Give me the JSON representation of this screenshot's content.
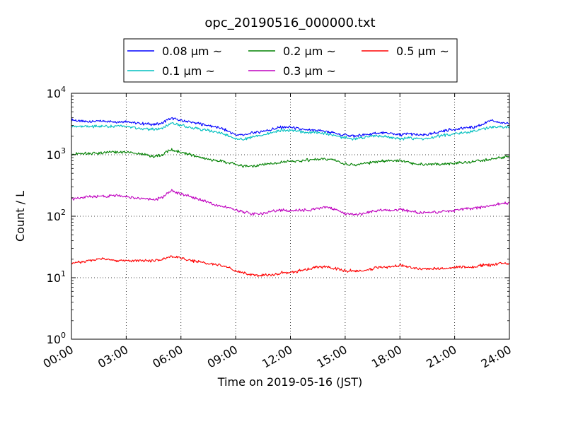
{
  "chart_data": {
    "type": "line",
    "title": "opc_20190516_000000.txt",
    "xlabel": "Time on 2019-05-16 (JST)",
    "ylabel": "Count / L",
    "x_unit": "time of day (JST)",
    "xlim": [
      "00:00",
      "24:00"
    ],
    "x_ticks": [
      "00:00",
      "03:00",
      "06:00",
      "09:00",
      "12:00",
      "15:00",
      "18:00",
      "21:00",
      "24:00"
    ],
    "yscale": "log",
    "ylim": [
      1,
      10000
    ],
    "y_ticks": [
      {
        "base": "10",
        "exp": "0"
      },
      {
        "base": "10",
        "exp": "1"
      },
      {
        "base": "10",
        "exp": "2"
      },
      {
        "base": "10",
        "exp": "3"
      },
      {
        "base": "10",
        "exp": "4"
      }
    ],
    "grid": true,
    "legend_position": "top-center",
    "x": [
      "00:00",
      "00:30",
      "01:00",
      "01:30",
      "02:00",
      "02:30",
      "03:00",
      "03:30",
      "04:00",
      "04:30",
      "05:00",
      "05:15",
      "05:30",
      "06:00",
      "06:30",
      "07:00",
      "07:30",
      "08:00",
      "08:30",
      "09:00",
      "09:30",
      "10:00",
      "10:30",
      "11:00",
      "11:30",
      "12:00",
      "12:30",
      "13:00",
      "13:30",
      "14:00",
      "14:30",
      "15:00",
      "15:30",
      "16:00",
      "16:30",
      "17:00",
      "17:30",
      "18:00",
      "18:30",
      "19:00",
      "19:30",
      "20:00",
      "20:30",
      "21:00",
      "21:30",
      "22:00",
      "22:30",
      "23:00",
      "23:30",
      "24:00"
    ],
    "series": [
      {
        "name": "0.08 µm ~",
        "color": "#0000ff",
        "values": [
          3700,
          3500,
          3500,
          3500,
          3500,
          3450,
          3500,
          3300,
          3200,
          3100,
          3300,
          3700,
          3900,
          3600,
          3400,
          3200,
          3000,
          2800,
          2500,
          2100,
          2100,
          2300,
          2400,
          2600,
          2800,
          2800,
          2600,
          2500,
          2500,
          2400,
          2200,
          2100,
          2000,
          2100,
          2200,
          2300,
          2200,
          2100,
          2200,
          2100,
          2100,
          2300,
          2500,
          2600,
          2700,
          2800,
          3100,
          3600,
          3300,
          3300
        ]
      },
      {
        "name": "0.1 µm ~",
        "color": "#00bfbf",
        "values": [
          2900,
          2900,
          2900,
          2900,
          2900,
          2900,
          2900,
          2700,
          2600,
          2600,
          2700,
          3000,
          3300,
          3000,
          2800,
          2600,
          2500,
          2300,
          2100,
          1800,
          1800,
          2000,
          2100,
          2300,
          2500,
          2500,
          2400,
          2300,
          2300,
          2200,
          2000,
          1900,
          1800,
          1900,
          2000,
          2000,
          1900,
          1800,
          1900,
          1800,
          1800,
          2000,
          2100,
          2200,
          2300,
          2400,
          2600,
          2800,
          2800,
          2800
        ]
      },
      {
        "name": "0.2 µm ~",
        "color": "#008000",
        "values": [
          1000,
          1050,
          1050,
          1050,
          1100,
          1100,
          1100,
          1050,
          1000,
          950,
          1000,
          1150,
          1200,
          1100,
          1000,
          900,
          850,
          800,
          750,
          700,
          650,
          650,
          700,
          720,
          750,
          780,
          800,
          820,
          850,
          850,
          800,
          700,
          680,
          720,
          750,
          780,
          800,
          800,
          750,
          700,
          700,
          700,
          700,
          720,
          750,
          780,
          800,
          850,
          900,
          950
        ]
      },
      {
        "name": "0.3 µm ~",
        "color": "#bf00bf",
        "values": [
          190,
          200,
          210,
          210,
          215,
          215,
          210,
          200,
          195,
          185,
          200,
          240,
          260,
          230,
          210,
          190,
          170,
          150,
          140,
          125,
          115,
          110,
          110,
          120,
          125,
          125,
          125,
          125,
          135,
          140,
          130,
          110,
          105,
          110,
          120,
          125,
          125,
          130,
          120,
          115,
          115,
          115,
          120,
          125,
          130,
          135,
          140,
          150,
          160,
          165
        ]
      },
      {
        "name": "0.5 µm ~",
        "color": "#ff0000",
        "values": [
          17,
          18,
          19,
          20,
          20,
          19,
          19,
          19,
          19,
          19,
          20,
          21,
          22,
          21,
          19,
          18,
          17,
          16,
          15,
          13,
          12,
          11,
          11,
          11,
          12,
          12,
          13,
          14,
          15,
          15,
          14,
          13,
          13,
          13,
          14,
          15,
          15,
          16,
          15,
          14,
          14,
          14,
          14,
          15,
          15,
          15,
          16,
          16,
          17,
          17
        ]
      }
    ]
  }
}
